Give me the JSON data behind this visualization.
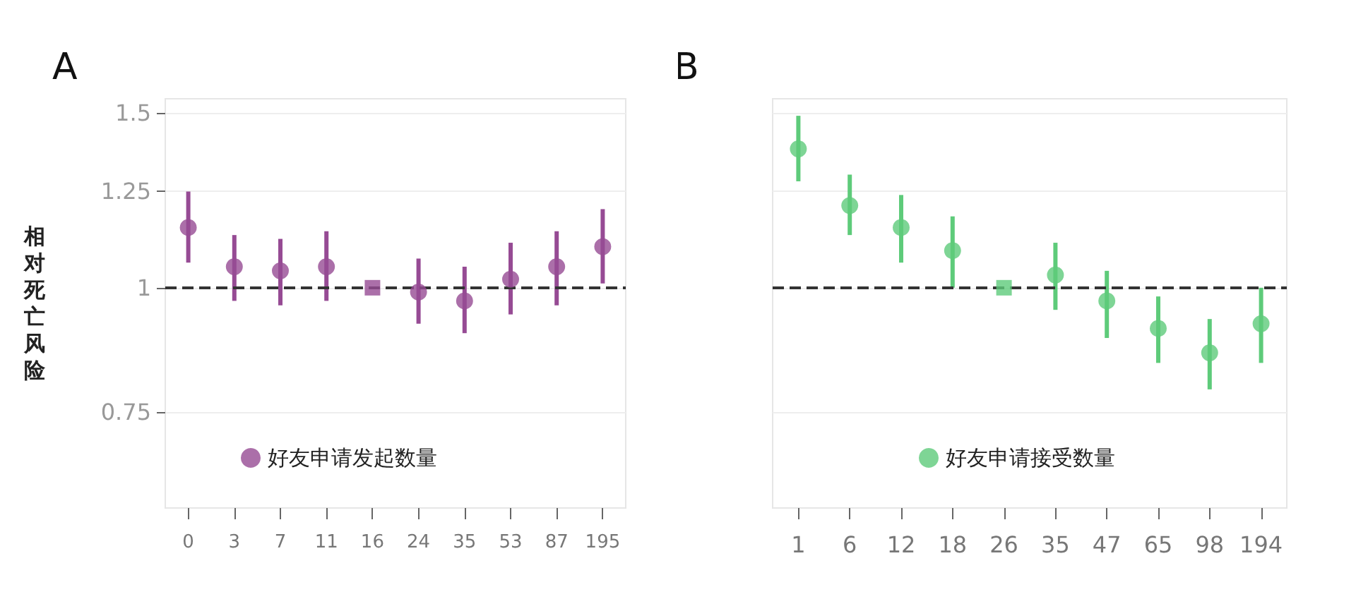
{
  "chart_data": [
    {
      "type": "scatter",
      "title": "A",
      "ylabel": "相对死亡风险",
      "categories": [
        "0",
        "3",
        "7",
        "11",
        "16",
        "24",
        "35",
        "53",
        "87",
        "195"
      ],
      "log": true,
      "ylim": [
        0.6,
        1.55
      ],
      "yticks": [
        0.75,
        1,
        1.25,
        1.5
      ],
      "grid": "y",
      "legend": "bottom",
      "marker": "circle",
      "series": [
        {
          "name": "好友申请发起数量",
          "color": "#964b94",
          "values": [
            1.15,
            1.05,
            1.04,
            1.05,
            null,
            0.99,
            0.97,
            1.02,
            1.05,
            1.1
          ],
          "errors": [
            [
              1.06,
              1.25
            ],
            [
              0.97,
              1.13
            ],
            [
              0.96,
              1.12
            ],
            [
              0.97,
              1.14
            ],
            null,
            [
              0.92,
              1.07
            ],
            [
              0.9,
              1.05
            ],
            [
              0.94,
              1.11
            ],
            [
              0.96,
              1.14
            ],
            [
              1.01,
              1.2
            ]
          ]
        },
        {
          "color": "#964b94",
          "marker": "square",
          "x": [
            "16"
          ],
          "values": [
            1
          ]
        }
      ],
      "ref_lines": [
        {
          "axis": "y",
          "value": 1,
          "color": "#333333",
          "line_style": "dashed"
        }
      ]
    },
    {
      "type": "scatter",
      "title": "B",
      "categories": [
        "1",
        "6",
        "12",
        "18",
        "26",
        "35",
        "47",
        "65",
        "98",
        "194"
      ],
      "log": true,
      "ylim": [
        0.6,
        1.55
      ],
      "yticks": [
        0.75,
        1,
        1.25,
        1.5
      ],
      "tick_labels": "x",
      "grid": "y",
      "legend": "bottom",
      "marker": "circle",
      "series": [
        {
          "name": "好友申请接受数量",
          "color": "#5ecb7a",
          "values": [
            1.38,
            1.21,
            1.15,
            1.09,
            null,
            1.03,
            0.97,
            0.91,
            0.86,
            0.92
          ],
          "errors": [
            [
              1.28,
              1.49
            ],
            [
              1.13,
              1.3
            ],
            [
              1.06,
              1.24
            ],
            [
              1.0,
              1.18
            ],
            null,
            [
              0.95,
              1.11
            ],
            [
              0.89,
              1.04
            ],
            [
              0.84,
              0.98
            ],
            [
              0.79,
              0.93
            ],
            [
              0.84,
              1.0
            ]
          ]
        },
        {
          "color": "#5ecb7a",
          "marker": "square",
          "x": [
            "26"
          ],
          "values": [
            1
          ]
        }
      ],
      "ref_lines": [
        {
          "axis": "y",
          "value": 1,
          "color": "#333333",
          "line_style": "dashed"
        }
      ]
    }
  ]
}
